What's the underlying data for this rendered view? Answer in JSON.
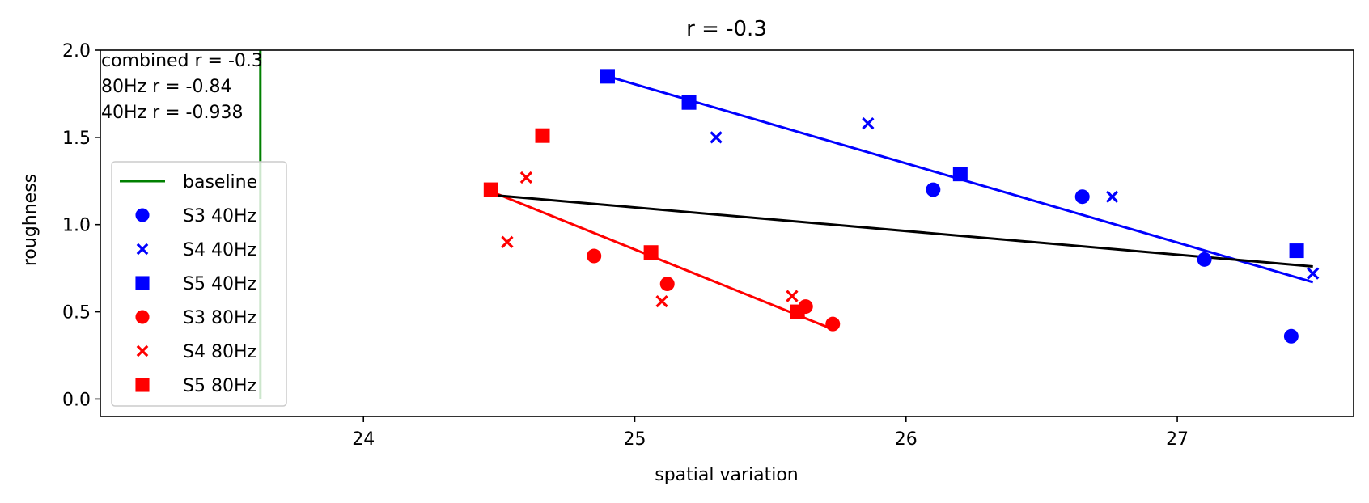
{
  "chart_data": {
    "type": "scatter",
    "title": "r = -0.3",
    "xlabel": "spatial variation",
    "ylabel": "roughness",
    "xlim": [
      23.03,
      27.65
    ],
    "ylim": [
      -0.1,
      2.0
    ],
    "xticks": [
      24,
      25,
      26,
      27
    ],
    "xtick_labels": [
      "24",
      "25",
      "26",
      "27"
    ],
    "yticks": [
      0.0,
      0.5,
      1.0,
      1.5,
      2.0
    ],
    "ytick_labels": [
      "0.0",
      "0.5",
      "1.0",
      "1.5",
      "2.0"
    ],
    "grid": false,
    "legend_position": "center-left",
    "annotations": [
      "combined r = -0.3",
      "80Hz r = -0.84",
      "40Hz r = -0.938"
    ],
    "baseline": {
      "name": "baseline",
      "x": 23.62,
      "y_range": [
        0.0,
        2.0
      ],
      "color": "#008000"
    },
    "series": [
      {
        "name": "S3 40Hz",
        "marker": "circle",
        "color": "#0000ff",
        "points": [
          [
            26.1,
            1.2
          ],
          [
            26.65,
            1.16
          ],
          [
            27.1,
            0.8
          ],
          [
            27.42,
            0.36
          ]
        ]
      },
      {
        "name": "S4 40Hz",
        "marker": "x",
        "color": "#0000ff",
        "points": [
          [
            25.3,
            1.5
          ],
          [
            25.86,
            1.58
          ],
          [
            26.76,
            1.16
          ],
          [
            27.5,
            0.72
          ]
        ]
      },
      {
        "name": "S5 40Hz",
        "marker": "square",
        "color": "#0000ff",
        "points": [
          [
            24.9,
            1.85
          ],
          [
            25.2,
            1.7
          ],
          [
            26.2,
            1.29
          ],
          [
            27.44,
            0.85
          ]
        ]
      },
      {
        "name": "S3 80Hz",
        "marker": "circle",
        "color": "#ff0000",
        "points": [
          [
            24.85,
            0.82
          ],
          [
            25.12,
            0.66
          ],
          [
            25.63,
            0.53
          ],
          [
            25.73,
            0.43
          ]
        ]
      },
      {
        "name": "S4 80Hz",
        "marker": "x",
        "color": "#ff0000",
        "points": [
          [
            24.53,
            0.9
          ],
          [
            24.6,
            1.27
          ],
          [
            25.1,
            0.56
          ],
          [
            25.58,
            0.59
          ]
        ]
      },
      {
        "name": "S5 80Hz",
        "marker": "square",
        "color": "#ff0000",
        "points": [
          [
            24.47,
            1.2
          ],
          [
            24.66,
            1.51
          ],
          [
            25.06,
            0.84
          ],
          [
            25.6,
            0.5
          ]
        ]
      }
    ],
    "fit_lines": [
      {
        "color": "#0000ff",
        "x": [
          24.9,
          27.5
        ],
        "y": [
          1.85,
          0.67
        ]
      },
      {
        "color": "#ff0000",
        "x": [
          24.47,
          25.73
        ],
        "y": [
          1.19,
          0.4
        ]
      },
      {
        "color": "#000000",
        "x": [
          24.47,
          27.5
        ],
        "y": [
          1.17,
          0.76
        ]
      }
    ]
  }
}
